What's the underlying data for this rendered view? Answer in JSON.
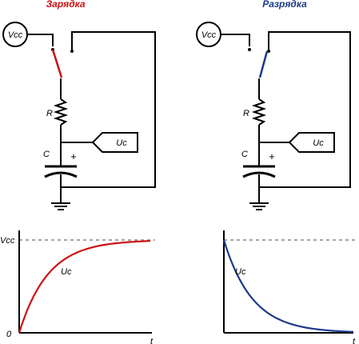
{
  "panels": {
    "charge": {
      "title": "Зарядка",
      "title_color": "#cc1111",
      "switch_color": "#cc1111",
      "source_label": "Vcc",
      "resistor_label": "R",
      "capacitor_label": "C",
      "plus_label": "+",
      "output_label": "Uc"
    },
    "discharge": {
      "title": "Разрядка",
      "title_color": "#1a3a8a",
      "switch_color": "#1a3a8a",
      "source_label": "Vcc",
      "resistor_label": "R",
      "capacitor_label": "C",
      "plus_label": "+",
      "output_label": "Uc"
    }
  },
  "chart_data": [
    {
      "type": "line",
      "title": "",
      "ylabel": "Vcc",
      "origin_label": "0",
      "xlabel": "t",
      "curve_label": "Uc",
      "reference_line": "Vcc",
      "series": [
        {
          "name": "Uc",
          "color": "#cc1111",
          "kind": "charge"
        }
      ]
    },
    {
      "type": "line",
      "title": "",
      "xlabel": "t",
      "curve_label": "Uc",
      "reference_line": "Vcc",
      "series": [
        {
          "name": "Uc",
          "color": "#1a3a8a",
          "kind": "discharge"
        }
      ]
    }
  ]
}
